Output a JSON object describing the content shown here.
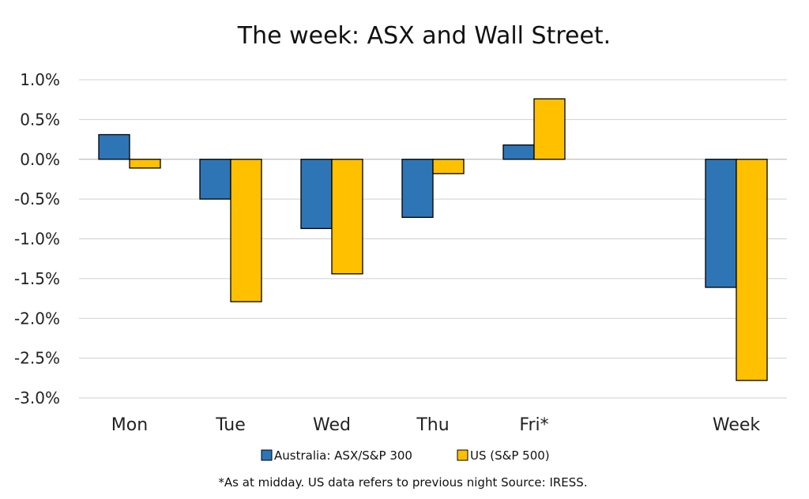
{
  "chart_data": {
    "type": "bar",
    "title": "The week:  ASX and Wall Street.",
    "categories": [
      "Mon",
      "Tue",
      "Wed",
      "Thu",
      "Fri*",
      "",
      "Week"
    ],
    "series": [
      {
        "name": "Australia: ASX/S&P 300",
        "color": "#2e75b6",
        "values": [
          0.31,
          -0.5,
          -0.87,
          -0.73,
          0.18,
          null,
          -1.61
        ]
      },
      {
        "name": "US (S&P 500)",
        "color": "#ffc000",
        "values": [
          -0.11,
          -1.79,
          -1.44,
          -0.18,
          0.76,
          null,
          -2.78
        ]
      }
    ],
    "ylim": [
      -3.0,
      1.0
    ],
    "yticks": [
      1.0,
      0.5,
      0.0,
      -0.5,
      -1.0,
      -1.5,
      -2.0,
      -2.5,
      -3.0
    ],
    "ytick_labels": [
      "1.0%",
      "0.5%",
      "0.0%",
      "-0.5%",
      "-1.0%",
      "-1.5%",
      "-2.0%",
      "-2.5%",
      "-3.0%"
    ],
    "xlabel": "",
    "ylabel": "",
    "grid": true,
    "legend_position": "bottom",
    "footnote": "*As at midday. US data refers to previous night  Source:  IRESS."
  }
}
